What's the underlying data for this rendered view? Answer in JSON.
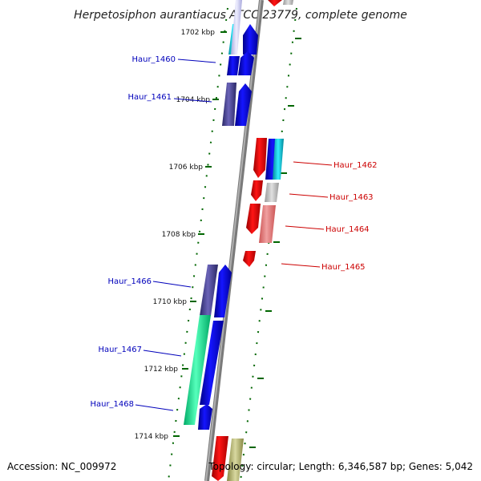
{
  "title": "Herpetosiphon aurantiacus ATCC 23779, complete genome",
  "footer": {
    "accession": "Accession: NC_009972",
    "topology": "Topology: circular; Length: 6,346,587 bp; Genes: 5,042"
  },
  "position_labels": [
    "1702 kbp",
    "1704 kbp",
    "1706 kbp",
    "1708 kbp",
    "1710 kbp",
    "1712 kbp",
    "1714 kbp"
  ],
  "genes_left": [
    {
      "id": "Haur_1460"
    },
    {
      "id": "Haur_1461"
    },
    {
      "id": "Haur_1466"
    },
    {
      "id": "Haur_1467"
    },
    {
      "id": "Haur_1468"
    }
  ],
  "genes_right": [
    {
      "id": "Haur_1462"
    },
    {
      "id": "Haur_1463"
    },
    {
      "id": "Haur_1464"
    },
    {
      "id": "Haur_1465"
    }
  ],
  "colors": {
    "left_label": "#0000bb",
    "right_label": "#cc0000",
    "backbone": "#888888",
    "tick": "#006600"
  }
}
